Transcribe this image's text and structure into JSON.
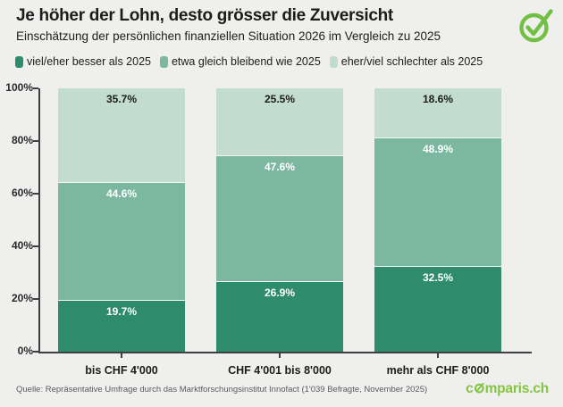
{
  "header": {
    "title": "Je höher der Lohn, desto grösser die Zuversicht",
    "subtitle": "Einschätzung der persönlichen finanziellen Situation 2026 im Vergleich zu 2025"
  },
  "brand": {
    "check_icon": "comparis-check",
    "check_color": "#72c043",
    "wordmark_pre": "c",
    "wordmark_post": "mparis.ch",
    "wordmark_color": "#85c441"
  },
  "chart_data": {
    "type": "bar",
    "stacked": true,
    "title": "Je höher der Lohn, desto grösser die Zuversicht",
    "categories": [
      "bis CHF 4'000",
      "CHF 4'001 bis 8'000",
      "mehr als CHF 8'000"
    ],
    "series": [
      {
        "name": "viel/eher besser als 2025",
        "values": [
          19.7,
          26.9,
          32.5
        ],
        "color": "#2e8c6d",
        "label_color": "#ffffff"
      },
      {
        "name": "etwa gleich bleibend wie 2025",
        "values": [
          44.6,
          47.6,
          48.9
        ],
        "color": "#7cb8a1",
        "label_color": "#ffffff"
      },
      {
        "name": "eher/viel schlechter als 2025",
        "values": [
          35.7,
          25.5,
          18.6
        ],
        "color": "#c3dcd0",
        "label_color": "#1c1c1a"
      }
    ],
    "xlabel": "",
    "ylabel": "",
    "ylim": [
      0,
      100
    ],
    "ytick_labels": [
      "0%",
      "20%",
      "40%",
      "60%",
      "80%",
      "100%"
    ],
    "grid": false,
    "legend_position": "top",
    "value_suffix": "%"
  },
  "footer": {
    "source": "Quelle: Repräsentative Umfrage durch das Marktforschungsinstitut Innofact (1'039 Befragte, November 2025)"
  }
}
